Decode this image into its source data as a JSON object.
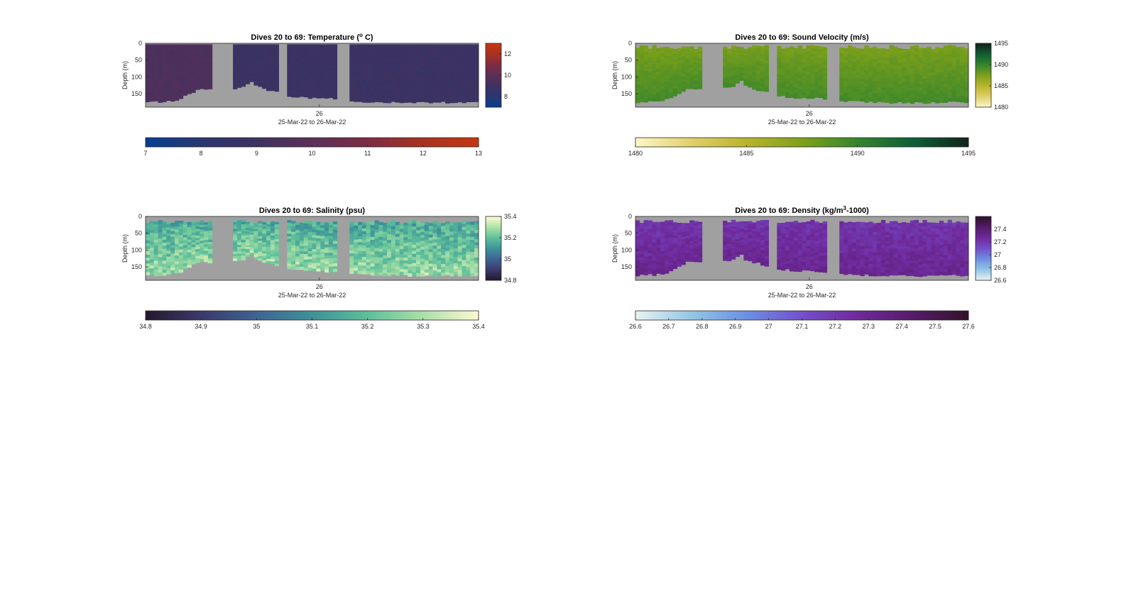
{
  "chart_data": [
    {
      "type": "heatmap",
      "variable": "temperature",
      "title": "Dives 20 to 69: Temperature (",
      "title_sup": "o",
      "title_tail": " C)",
      "ylabel": "Depth (m)",
      "ytick_labels": [
        "0",
        "50",
        "100",
        "150"
      ],
      "y_ticks": [
        0,
        50,
        100,
        150
      ],
      "ylim": [
        0,
        190
      ],
      "xtick_label": "26",
      "xlabel": "25-Mar-22 to 26-Mar-22",
      "clim": [
        7,
        13
      ],
      "side_ticks": [
        "8",
        "10",
        "12"
      ],
      "side_tick_values": [
        8,
        10,
        12
      ],
      "bottom_ticks": [
        "7",
        "8",
        "9",
        "10",
        "11",
        "12",
        "13"
      ],
      "bottom_tick_values": [
        7,
        8,
        9,
        10,
        11,
        12,
        13
      ],
      "colormap": [
        "#083e92",
        "#2a3770",
        "#3e3261",
        "#5b2f58",
        "#7c2c45",
        "#a83222",
        "#c4370f"
      ],
      "value_range": [
        8.2,
        10.4
      ],
      "fill_top": [
        3,
        3
      ],
      "no_data_color": "#a0a0a0"
    },
    {
      "type": "heatmap",
      "variable": "sound_velocity",
      "title": "Dives 20 to 69: Sound Velocity (m/s)",
      "ylabel": "Depth (m)",
      "ytick_labels": [
        "0",
        "50",
        "100",
        "150"
      ],
      "y_ticks": [
        0,
        50,
        100,
        150
      ],
      "ylim": [
        0,
        190
      ],
      "xtick_label": "26",
      "xlabel": "25-Mar-22 to 26-Mar-22",
      "clim": [
        1480,
        1495
      ],
      "side_ticks": [
        "1480",
        "1485",
        "1490",
        "1495"
      ],
      "side_tick_values": [
        1480,
        1485,
        1490,
        1495
      ],
      "bottom_ticks": [
        "1480",
        "1485",
        "1490",
        "1495"
      ],
      "bottom_tick_values": [
        1480,
        1485,
        1490,
        1495
      ],
      "colormap": [
        "#fbf6c6",
        "#e0cf6a",
        "#b9b42c",
        "#7ea11a",
        "#36852d",
        "#0f6036",
        "#14251c"
      ],
      "value_range": [
        1487,
        1490
      ],
      "fill_top": [
        5,
        17
      ],
      "no_data_color": "#a0a0a0"
    },
    {
      "type": "heatmap",
      "variable": "salinity",
      "title": "Dives 20 to 69: Salinity (psu)",
      "ylabel": "Depth (m)",
      "ytick_labels": [
        "0",
        "50",
        "100",
        "150"
      ],
      "y_ticks": [
        0,
        50,
        100,
        150
      ],
      "ylim": [
        0,
        190
      ],
      "xtick_label": "26",
      "xlabel": "25-Mar-22 to 26-Mar-22",
      "clim": [
        34.8,
        35.4
      ],
      "side_ticks": [
        "34.8",
        "35",
        "35.2",
        "35.4"
      ],
      "side_tick_values": [
        34.8,
        35.0,
        35.2,
        35.4
      ],
      "bottom_ticks": [
        "34.8",
        "34.9",
        "35",
        "35.1",
        "35.2",
        "35.3",
        "35.4"
      ],
      "bottom_tick_values": [
        34.8,
        34.9,
        35.0,
        35.1,
        35.2,
        35.3,
        35.4
      ],
      "colormap": [
        "#271830",
        "#3b3a6b",
        "#3e6494",
        "#3e9199",
        "#5dbf9a",
        "#a9dfa7",
        "#fcf8cf"
      ],
      "value_range": [
        35.05,
        35.35
      ],
      "fill_top": [
        10,
        20
      ],
      "no_data_color": "#a0a0a0"
    },
    {
      "type": "heatmap",
      "variable": "density",
      "title": "Dives 20 to 69: Density (kg/m",
      "title_sup": "3",
      "title_tail": "-1000)",
      "ylabel": "Depth (m)",
      "ytick_labels": [
        "0",
        "50",
        "100",
        "150"
      ],
      "y_ticks": [
        0,
        50,
        100,
        150
      ],
      "ylim": [
        0,
        190
      ],
      "xtick_label": "26",
      "xlabel": "25-Mar-22 to 26-Mar-22",
      "clim": [
        26.6,
        27.6
      ],
      "side_ticks": [
        "26.6",
        "26.8",
        "27",
        "27.2",
        "27.4"
      ],
      "side_tick_values": [
        26.6,
        26.8,
        27.0,
        27.2,
        27.4
      ],
      "bottom_ticks": [
        "26.6",
        "26.7",
        "26.8",
        "26.9",
        "27",
        "27.1",
        "27.2",
        "27.3",
        "27.4",
        "27.5",
        "27.6"
      ],
      "bottom_tick_values": [
        26.6,
        26.7,
        26.8,
        26.9,
        27.0,
        27.1,
        27.2,
        27.3,
        27.4,
        27.5,
        27.6
      ],
      "colormap": [
        "#e6f1f1",
        "#93c6e4",
        "#6c8fe2",
        "#7450cb",
        "#6f2a9c",
        "#561d6b",
        "#33112a"
      ],
      "value_range": [
        27.15,
        27.35
      ],
      "fill_top": [
        10,
        20
      ],
      "no_data_color": "#a0a0a0"
    }
  ]
}
